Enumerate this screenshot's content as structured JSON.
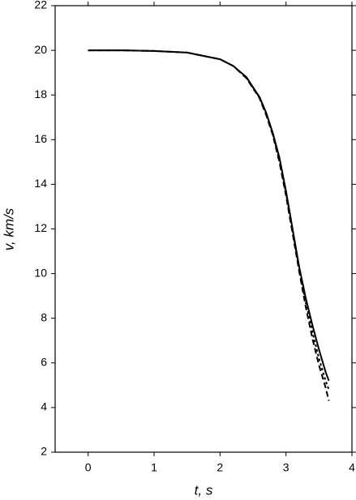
{
  "chart_data": {
    "type": "line",
    "x_label": "t, s",
    "y_label": "v, km/s",
    "x": [
      0,
      0.5,
      1,
      1.5,
      2,
      2.2,
      2.4,
      2.6,
      2.7,
      2.8,
      2.9,
      3.0,
      3.1,
      3.2,
      3.3,
      3.4,
      3.5,
      3.6,
      3.65
    ],
    "series": [
      {
        "color": "#000000",
        "values": [
          20,
          20,
          19.97,
          19.9,
          19.6,
          19.3,
          18.8,
          17.9,
          17.2,
          16.3,
          15.2,
          13.7,
          12.0,
          10.3,
          8.9,
          7.7,
          6.6,
          5.6,
          5.2
        ]
      },
      {
        "color": "#000000",
        "values": [
          20,
          20,
          19.97,
          19.9,
          19.6,
          19.3,
          18.75,
          17.85,
          17.1,
          16.2,
          15.0,
          13.5,
          11.8,
          10.1,
          8.5,
          7.1,
          5.9,
          4.9,
          4.3
        ]
      },
      {
        "color": "#000000",
        "values": [
          20,
          20,
          19.97,
          19.9,
          19.6,
          19.3,
          18.78,
          17.88,
          17.15,
          16.25,
          15.1,
          13.6,
          11.9,
          10.2,
          8.7,
          7.4,
          6.2,
          5.2,
          4.8
        ]
      }
    ],
    "xlim": [
      -0.5,
      4
    ],
    "xticks": [
      0,
      1,
      2,
      3,
      4
    ],
    "ylim": [
      2,
      22
    ],
    "yticks": [
      2,
      4,
      6,
      8,
      10,
      12,
      14,
      16,
      18,
      20,
      22
    ],
    "grid": false
  }
}
